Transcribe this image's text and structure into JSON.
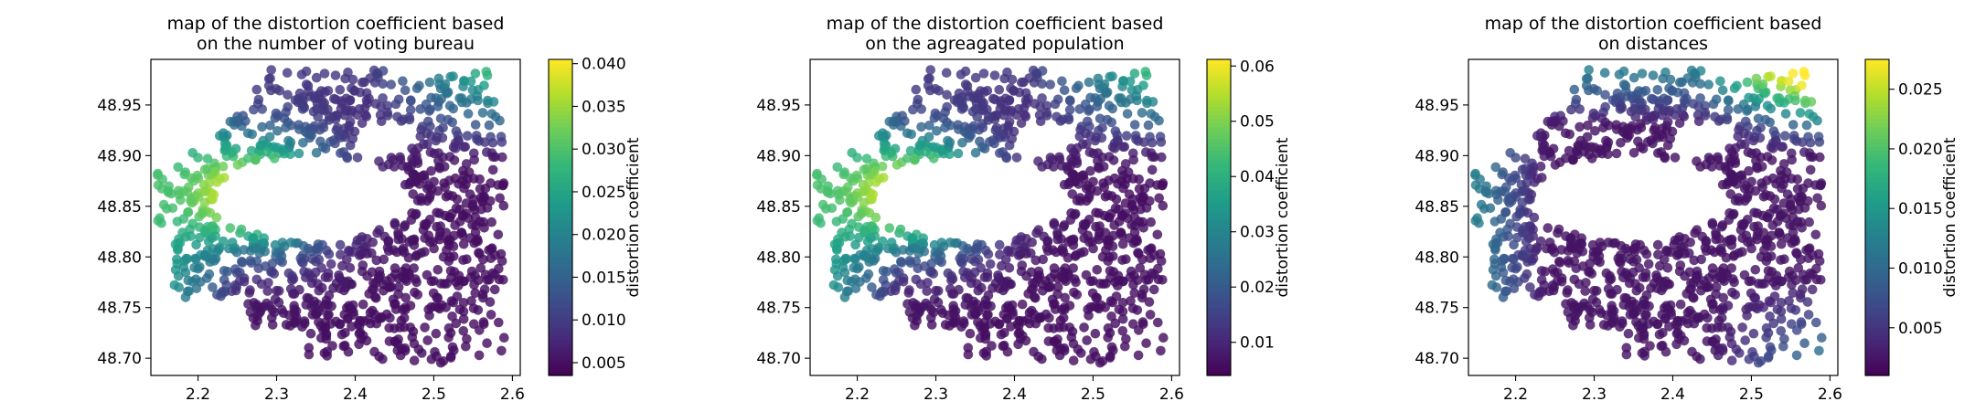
{
  "chart_data": [
    {
      "type": "scatter",
      "title": "map of the distortion coefficient based\non the number of voting bureau",
      "xlabel": "",
      "ylabel": "",
      "xlim": [
        2.14,
        2.61
      ],
      "ylim": [
        48.683,
        48.995
      ],
      "xticks": [
        "2.2",
        "2.3",
        "2.4",
        "2.5",
        "2.6"
      ],
      "yticks": [
        "48.70",
        "48.75",
        "48.80",
        "48.85",
        "48.90",
        "48.95"
      ],
      "colorbar": {
        "label": "distortion coefficient",
        "range": [
          0.0035,
          0.0405
        ],
        "ticks": [
          "0.005",
          "0.010",
          "0.015",
          "0.020",
          "0.025",
          "0.030",
          "0.035",
          "0.040"
        ]
      },
      "colormap": "viridis",
      "pattern": "west-hotspot",
      "seed": 11
    },
    {
      "type": "scatter",
      "title": "map of the distortion coefficient based\non the agreagated population",
      "xlabel": "",
      "ylabel": "",
      "xlim": [
        2.14,
        2.61
      ],
      "ylim": [
        48.683,
        48.995
      ],
      "xticks": [
        "2.2",
        "2.3",
        "2.4",
        "2.5",
        "2.6"
      ],
      "yticks": [
        "48.70",
        "48.75",
        "48.80",
        "48.85",
        "48.90",
        "48.95"
      ],
      "colorbar": {
        "label": "distortion coefficient",
        "range": [
          0.004,
          0.0612
        ],
        "ticks": [
          "0.01",
          "0.02",
          "0.03",
          "0.04",
          "0.05",
          "0.06"
        ]
      },
      "colormap": "viridis",
      "pattern": "west-hotspot",
      "seed": 11
    },
    {
      "type": "scatter",
      "title": "map of the distortion coefficient based\non distances",
      "xlabel": "",
      "ylabel": "",
      "xlim": [
        2.14,
        2.61
      ],
      "ylim": [
        48.683,
        48.995
      ],
      "xticks": [
        "2.2",
        "2.3",
        "2.4",
        "2.5",
        "2.6"
      ],
      "yticks": [
        "48.70",
        "48.75",
        "48.80",
        "48.85",
        "48.90",
        "48.95"
      ],
      "colorbar": {
        "label": "distortion coefficient",
        "range": [
          0.001,
          0.0275
        ],
        "ticks": [
          "0.005",
          "0.010",
          "0.015",
          "0.020",
          "0.025"
        ]
      },
      "colormap": "viridis",
      "pattern": "edge-gradient",
      "seed": 11
    }
  ]
}
